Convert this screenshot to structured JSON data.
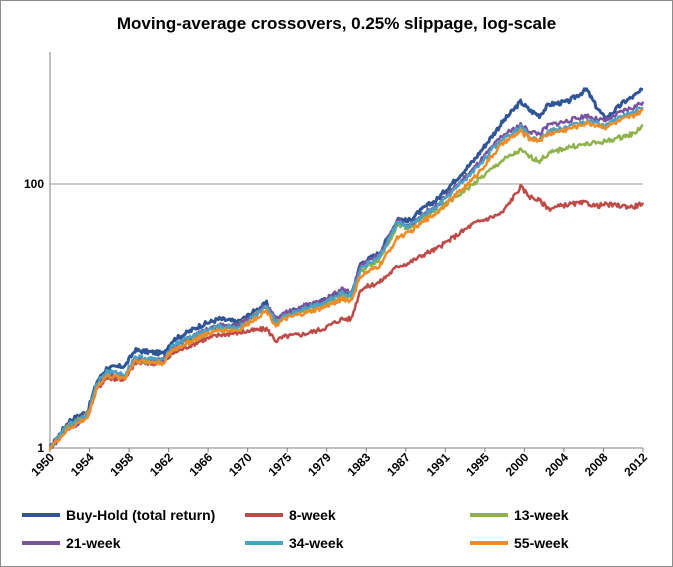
{
  "chart_data": {
    "type": "line",
    "title": "Moving-average crossovers, 0.25% slippage, log-scale",
    "xlabel": "",
    "ylabel": "",
    "y_scale": "log",
    "ylim": [
      1,
      1000
    ],
    "y_ticks": [
      1,
      100
    ],
    "x_range": [
      1950,
      2013
    ],
    "x_tick_labels": [
      "1950",
      "1954",
      "1958",
      "1962",
      "1966",
      "1970",
      "1975",
      "1979",
      "1983",
      "1987",
      "1991",
      "1995",
      "2000",
      "2004",
      "2008",
      "2012"
    ],
    "grid": "horizontal",
    "legend_placement": "bottom",
    "x": [
      1950,
      1952,
      1954,
      1955,
      1956,
      1958,
      1959,
      1962,
      1963,
      1966,
      1968,
      1970,
      1973,
      1974,
      1975,
      1977,
      1979,
      1981,
      1982,
      1983,
      1985,
      1987,
      1988,
      1990,
      1991,
      1995,
      1998,
      2000,
      2001,
      2002,
      2003,
      2005,
      2007,
      2008,
      2009,
      2011,
      2012,
      2013
    ],
    "series": [
      {
        "name": "Buy-Hold (total return)",
        "color": "#2f5597",
        "values": [
          1,
          1.6,
          1.9,
          3.2,
          4.0,
          4.2,
          5.5,
          5.2,
          6.5,
          8.5,
          9.5,
          9.0,
          12.5,
          8.8,
          10.5,
          11.5,
          13.0,
          15.5,
          14.0,
          25,
          30,
          55,
          52,
          68,
          75,
          150,
          290,
          420,
          360,
          330,
          400,
          420,
          520,
          390,
          310,
          420,
          460,
          520
        ]
      },
      {
        "name": "8-week",
        "color": "#be4b48",
        "values": [
          1,
          1.5,
          1.8,
          2.8,
          3.4,
          3.3,
          4.4,
          4.4,
          5.2,
          6.5,
          7.2,
          7.5,
          8.0,
          6.5,
          7.0,
          7.3,
          8.0,
          9.5,
          9.5,
          16,
          18,
          24,
          25,
          30,
          32,
          50,
          60,
          95,
          80,
          75,
          65,
          70,
          72,
          68,
          70,
          68,
          67,
          72
        ]
      },
      {
        "name": "13-week",
        "color": "#8fb34b",
        "values": [
          1,
          1.5,
          1.8,
          3.0,
          3.6,
          3.5,
          4.6,
          4.5,
          5.6,
          7.0,
          8.0,
          8.5,
          11.5,
          9.0,
          10.0,
          11.0,
          12.0,
          14.0,
          14.0,
          22,
          27,
          50,
          45,
          58,
          62,
          100,
          150,
          180,
          160,
          150,
          170,
          190,
          200,
          205,
          210,
          230,
          240,
          280
        ]
      },
      {
        "name": "21-week",
        "color": "#7a52a0",
        "values": [
          1,
          1.4,
          1.7,
          3.0,
          3.6,
          3.5,
          4.7,
          4.6,
          5.8,
          7.5,
          8.5,
          8.5,
          12.0,
          9.5,
          10.5,
          12.0,
          13.0,
          16.0,
          15.0,
          24,
          29,
          53,
          48,
          62,
          68,
          130,
          230,
          280,
          250,
          240,
          280,
          300,
          330,
          310,
          300,
          360,
          380,
          420
        ]
      },
      {
        "name": "34-week",
        "color": "#4aa3c4",
        "values": [
          1,
          1.5,
          1.8,
          3.1,
          3.8,
          3.6,
          4.9,
          4.6,
          6.0,
          7.5,
          8.3,
          8.2,
          11.5,
          9.0,
          10.0,
          11.5,
          12.5,
          15.0,
          14.5,
          23,
          28,
          52,
          47,
          60,
          66,
          125,
          220,
          270,
          230,
          220,
          250,
          270,
          300,
          290,
          280,
          330,
          350,
          380
        ]
      },
      {
        "name": "55-week",
        "color": "#f08c28",
        "values": [
          1,
          1.4,
          1.7,
          2.9,
          3.5,
          3.4,
          4.6,
          4.4,
          5.5,
          7.0,
          7.8,
          7.8,
          11.0,
          8.5,
          9.5,
          10.5,
          11.5,
          13.5,
          13.0,
          20,
          24,
          40,
          42,
          54,
          60,
          110,
          200,
          250,
          220,
          215,
          240,
          260,
          290,
          280,
          270,
          310,
          330,
          360
        ]
      }
    ]
  }
}
